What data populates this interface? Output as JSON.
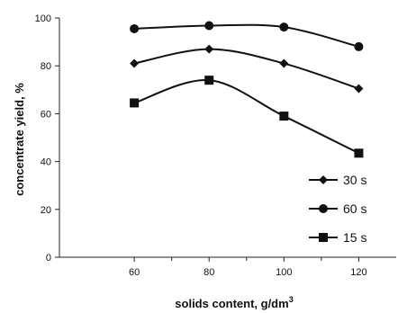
{
  "chart_data": {
    "type": "line",
    "title": "",
    "xlabel": "solids content, g/dm",
    "xlabel_superscript": "3",
    "ylabel": "concentrate yield, %",
    "categories": [
      60,
      80,
      100,
      120
    ],
    "xlim": [
      40,
      130
    ],
    "ylim": [
      0,
      100
    ],
    "yticks": [
      0,
      20,
      40,
      60,
      80,
      100
    ],
    "grid": false,
    "legend_position": "bottom-right",
    "series": [
      {
        "name": "30 s",
        "marker": "diamond",
        "values": [
          81,
          87,
          81,
          70.5
        ]
      },
      {
        "name": "60 s",
        "marker": "circle",
        "values": [
          95.5,
          96.8,
          96.2,
          88
        ]
      },
      {
        "name": "15 s",
        "marker": "square",
        "values": [
          64.5,
          74,
          59,
          43.5
        ]
      }
    ],
    "colors": {
      "line": "#111111",
      "axis": "#222222"
    }
  }
}
